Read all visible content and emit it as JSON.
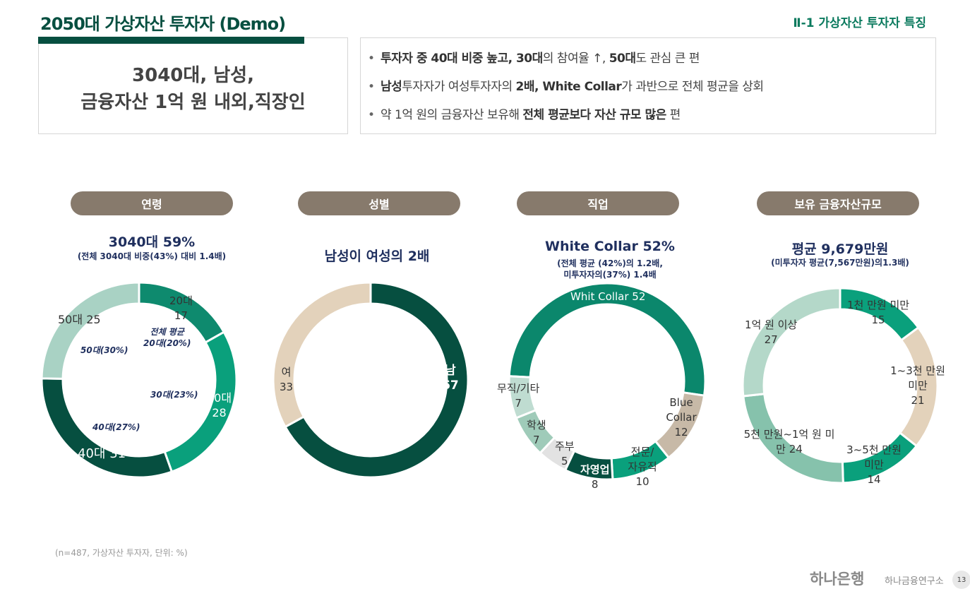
{
  "header": {
    "title": "2050대 가상자산 투자자 (Demo)",
    "section": "Ⅱ-1 가상자산 투자자 특징"
  },
  "summary": {
    "line1": "3040대, 남성,",
    "line2": "금융자산 1억 원 내외,직장인"
  },
  "bullets": [
    {
      "parts": [
        {
          "t": "투자자 중 40대 비중 높고, 30대",
          "b": true
        },
        {
          "t": "의 참여율 ↑, ",
          "b": false
        },
        {
          "t": "50대",
          "b": true
        },
        {
          "t": "도 관심 큰 편",
          "b": false
        }
      ]
    },
    {
      "parts": [
        {
          "t": "남성",
          "b": true
        },
        {
          "t": "투자자가 여성투자자의 ",
          "b": false
        },
        {
          "t": "2배, White Collar",
          "b": true
        },
        {
          "t": "가 과반으로 전체 평균을 상회",
          "b": false
        }
      ]
    },
    {
      "parts": [
        {
          "t": "약 1억 원의 금융자산 보유해 ",
          "b": false
        },
        {
          "t": "전체 평균보다 자산 규모 많은",
          "b": true
        },
        {
          "t": " 편",
          "b": false
        }
      ]
    }
  ],
  "footnote": "(n=487, 가상자산 투자자, 단위: %)",
  "footer": {
    "logo": "하나은행",
    "institute": "하나금융연구소",
    "page": "13"
  },
  "chart_data": [
    {
      "type": "pie",
      "variant": "donut",
      "category": "연령",
      "headline": "3040대 59%",
      "subline": "(전체 3040대 비중(43%) 대비 1.4배)",
      "categories": [
        "20대",
        "30대",
        "40대",
        "50대"
      ],
      "values": [
        17,
        28,
        31,
        25
      ],
      "colors": [
        "#0e8a6e",
        "#0aa07c",
        "#064f40",
        "#a9d2c4"
      ],
      "annotations": [
        "전체 평균",
        "20대(20%)",
        "30대(23%)",
        "40대(27%)",
        "50대(30%)"
      ]
    },
    {
      "type": "pie",
      "variant": "donut",
      "category": "성별",
      "headline": "남성이 여성의 2배",
      "subline": "",
      "categories": [
        "남",
        "여"
      ],
      "values": [
        67,
        33
      ],
      "colors": [
        "#064f40",
        "#e3d2bb"
      ]
    },
    {
      "type": "pie",
      "variant": "donut",
      "category": "직업",
      "headline": "White Collar 52%",
      "subline": "(전체 평균 (42%)의 1.2배,",
      "subline2": "미투자자의(37%) 1.4배",
      "categories": [
        "Whit Collar",
        "Blue Collar",
        "전문/자유직",
        "자영업",
        "주부",
        "학생",
        "무직/기타"
      ],
      "values": [
        52,
        12,
        10,
        8,
        5,
        7,
        7
      ],
      "colors": [
        "#0b876c",
        "#c7b9a7",
        "#0aa07c",
        "#064f40",
        "#e2e2e2",
        "#9fcbb9",
        "#bfdcd1"
      ]
    },
    {
      "type": "pie",
      "variant": "donut",
      "category": "보유 금융자산규모",
      "headline": "평균  9,679만원",
      "subline": "(미투자자 평균(7,567만원)의1.3배)",
      "categories": [
        "1천 만원 미만",
        "1~3천 만원 미만",
        "3~5천 만원 미만",
        "5천 만원~1억 원 미만",
        "1억 원 이상"
      ],
      "values": [
        15,
        21,
        14,
        24,
        27
      ],
      "colors": [
        "#0aa07c",
        "#e3d2bb",
        "#0aa07c",
        "#86c2ac",
        "#b4d8c9"
      ]
    }
  ]
}
